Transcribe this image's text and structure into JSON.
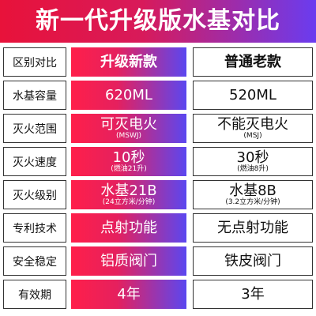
{
  "title": "新一代升级版水基对比",
  "header": {
    "label": "区别对比",
    "new": "升级新款",
    "old": "普通老款"
  },
  "rows": [
    {
      "label": "水基容量",
      "new_main": "620ML",
      "new_sub": "",
      "old_main": "520ML",
      "old_sub": ""
    },
    {
      "label": "灭火范围",
      "new_main": "可灭电火",
      "new_sub": "(MSWJ)",
      "old_main": "不能灭电火",
      "old_sub": "(MSJ)"
    },
    {
      "label": "灭火速度",
      "new_main": "10秒",
      "new_sub": "(燃油21升)",
      "old_main": "30秒",
      "old_sub": "(燃油8升)"
    },
    {
      "label": "灭火级别",
      "new_main": "水基21B",
      "new_sub": "(24立方米/分钟)",
      "old_main": "水基8B",
      "old_sub": "(3.2立方米/分钟)"
    },
    {
      "label": "专利技术",
      "new_main": "点射功能",
      "new_sub": "",
      "old_main": "无点射功能",
      "old_sub": ""
    },
    {
      "label": "安全稳定",
      "new_main": "铝质阀门",
      "new_sub": "",
      "old_main": "铁皮阀门",
      "old_sub": ""
    },
    {
      "label": "有效期",
      "new_main": "4年",
      "new_sub": "",
      "old_main": "3年",
      "old_sub": ""
    }
  ]
}
